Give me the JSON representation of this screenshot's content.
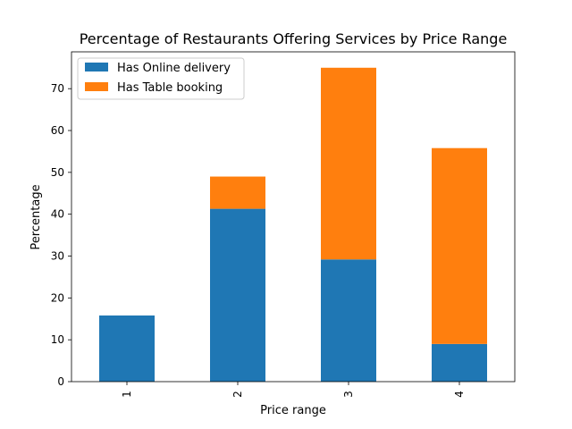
{
  "chart_data": {
    "type": "bar",
    "stacked": true,
    "title": "Percentage of Restaurants Offering Services by Price Range",
    "xlabel": "Price range",
    "ylabel": "Percentage",
    "categories": [
      "1",
      "2",
      "3",
      "4"
    ],
    "series": [
      {
        "name": "Has Online delivery",
        "color": "#1f77b4",
        "values": [
          15.8,
          41.3,
          29.2,
          9.0
        ]
      },
      {
        "name": "Has Table booking",
        "color": "#ff7f0e",
        "values": [
          0.0,
          7.7,
          45.8,
          46.8
        ]
      }
    ],
    "ylim": [
      0,
      78.8
    ],
    "yticks": [
      0,
      10,
      20,
      30,
      40,
      50,
      60,
      70
    ],
    "grid": false,
    "legend_position": "top-left"
  }
}
